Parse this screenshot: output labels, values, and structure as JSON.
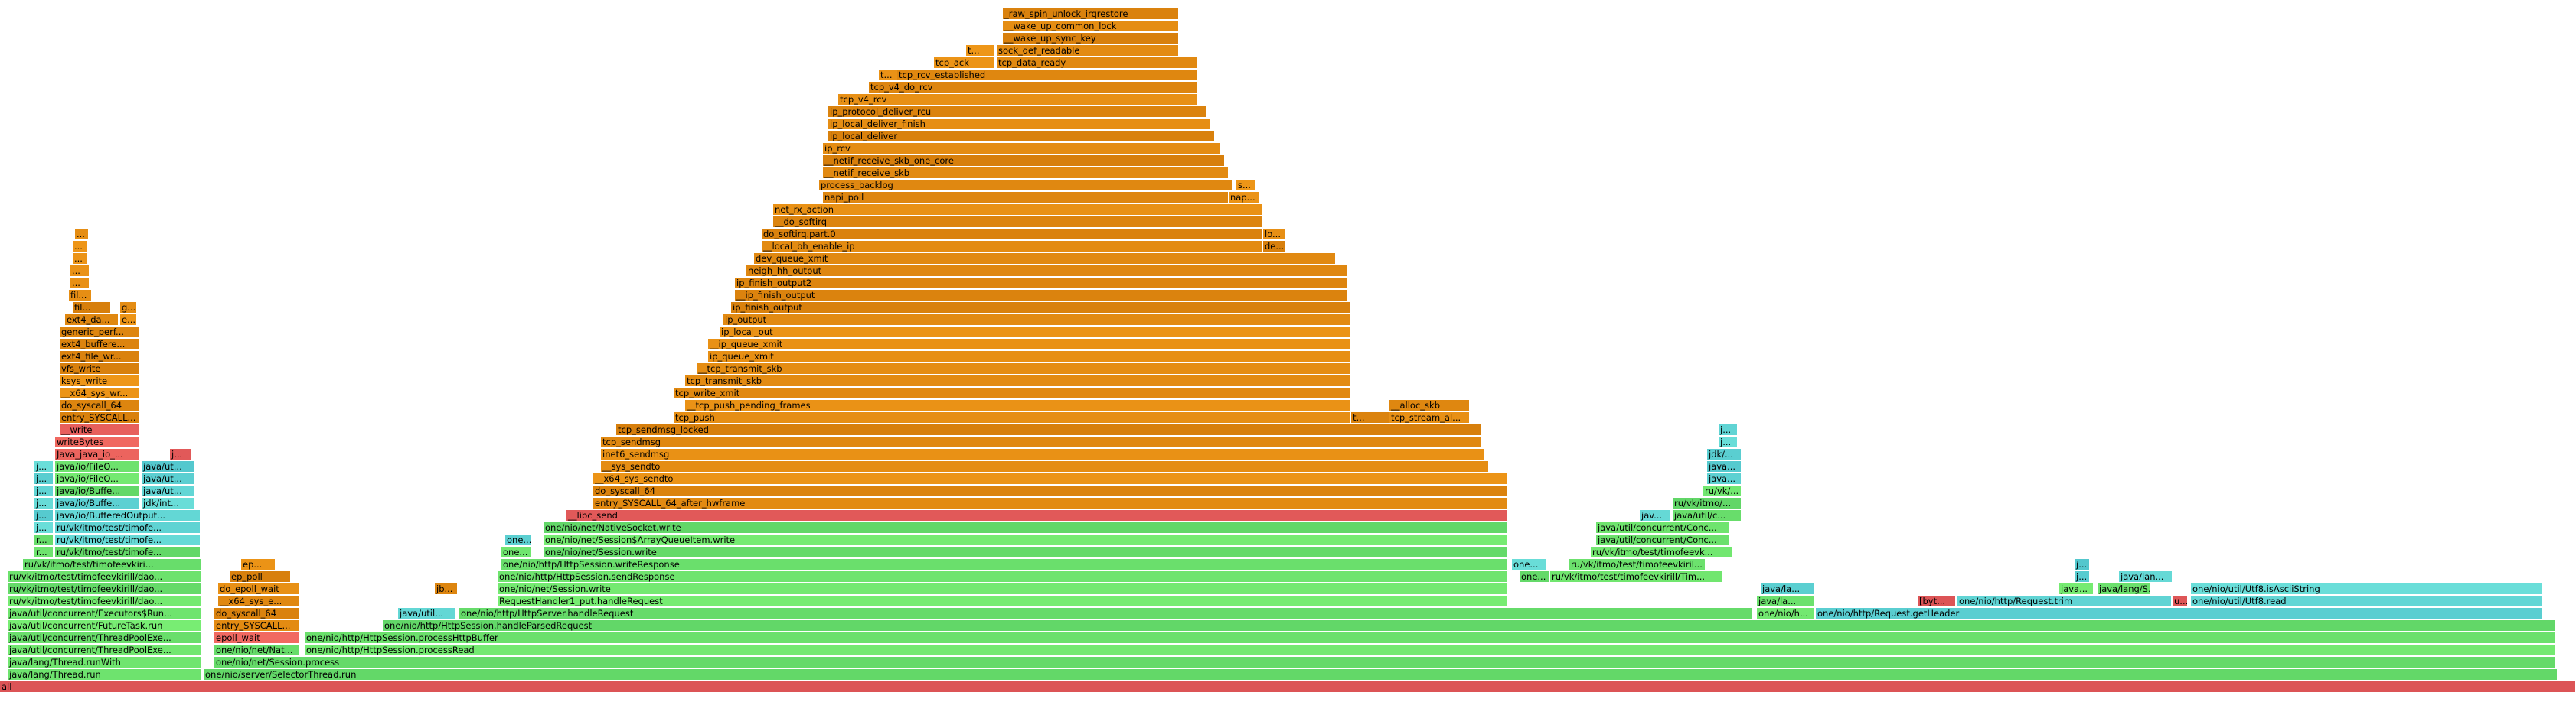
{
  "title": "",
  "colors": {
    "red": "#e8605c",
    "green": "#6de26d",
    "aqua": "#5fd3d3",
    "orange": "#e38b12",
    "yellow": "#cbbf3f"
  },
  "frames": [
    [
      "all",
      0,
      3365,
      0,
      "red"
    ],
    [
      "java/lang/Thread.run",
      10,
      253,
      1,
      "green"
    ],
    [
      "one/nio/server/SelectorThread.run",
      266,
      3075,
      1,
      "green"
    ],
    [
      "java/lang/Thread.runWith",
      10,
      253,
      2,
      "green"
    ],
    [
      "one/nio/net/Session.process",
      280,
      3058,
      2,
      "green"
    ],
    [
      "java/util/concurrent/ThreadPoolExe...",
      10,
      253,
      3,
      "green"
    ],
    [
      "one/nio/net/Nat...",
      280,
      112,
      3,
      "green"
    ],
    [
      "one/nio/http/HttpSession.processRead",
      398,
      2940,
      3,
      "green"
    ],
    [
      "java/util/concurrent/ThreadPoolExe...",
      10,
      253,
      4,
      "green"
    ],
    [
      "epoll_wait",
      280,
      112,
      4,
      "red"
    ],
    [
      "one/nio/http/HttpSession.processHttpBuffer",
      398,
      2940,
      4,
      "green"
    ],
    [
      "java/util/concurrent/FutureTask.run",
      10,
      253,
      5,
      "green"
    ],
    [
      "entry_SYSCALL...",
      280,
      112,
      5,
      "orange"
    ],
    [
      "one/nio/http/HttpSession.handleParsedRequest",
      500,
      2838,
      5,
      "green"
    ],
    [
      "java/util/concurrent/Executors$Run...",
      10,
      253,
      6,
      "green"
    ],
    [
      "do_syscall_64",
      280,
      112,
      6,
      "orange"
    ],
    [
      "java/util...",
      520,
      75,
      6,
      "aqua"
    ],
    [
      "one/nio/http/HttpServer.handleRequest",
      600,
      1690,
      6,
      "green"
    ],
    [
      "one/nio/h...",
      2295,
      75,
      6,
      "green"
    ],
    [
      "one/nio/http/Request.getHeader",
      2372,
      950,
      6,
      "aqua"
    ],
    [
      "ru/vk/itmo/test/timofeevkirill/dao...",
      10,
      253,
      7,
      "green"
    ],
    [
      "__x64_sys_e...",
      285,
      107,
      7,
      "orange"
    ],
    [
      "RequestHandler1_put.handleRequest",
      650,
      1320,
      7,
      "green"
    ],
    [
      "java/la...",
      2295,
      75,
      7,
      "green"
    ],
    [
      "[byt...",
      2505,
      50,
      7,
      "red"
    ],
    [
      "one/nio/http/Request.trim",
      2557,
      280,
      7,
      "aqua"
    ],
    [
      "u...",
      2838,
      20,
      7,
      "red"
    ],
    [
      "one/nio/util/Utf8.read",
      2862,
      460,
      7,
      "aqua"
    ],
    [
      "ru/vk/itmo/test/timofeevkirill/dao...",
      10,
      253,
      8,
      "green"
    ],
    [
      "do_epoll_wait",
      285,
      107,
      8,
      "orange"
    ],
    [
      "jb...",
      568,
      30,
      8,
      "orange"
    ],
    [
      "one/nio/net/Session.write",
      650,
      1320,
      8,
      "green"
    ],
    [
      "java/la...",
      2300,
      70,
      8,
      "aqua"
    ],
    [
      "java...",
      2690,
      45,
      8,
      "green"
    ],
    [
      "java/lang/S...",
      2740,
      70,
      8,
      "green"
    ],
    [
      "one/nio/util/Utf8.isAsciiString",
      2862,
      460,
      8,
      "aqua"
    ],
    [
      "ru/vk/itmo/test/timofeevkirill/dao...",
      10,
      253,
      9,
      "green"
    ],
    [
      "ep_poll",
      300,
      80,
      9,
      "orange"
    ],
    [
      "one/nio/http/HttpSession.sendResponse",
      650,
      1320,
      9,
      "green"
    ],
    [
      "one...",
      1985,
      40,
      9,
      "green"
    ],
    [
      "ru/vk/itmo/test/timofeevkirill/Tim...",
      2025,
      225,
      9,
      "green"
    ],
    [
      "j...",
      2710,
      20,
      9,
      "aqua"
    ],
    [
      "java/lan...",
      2768,
      70,
      9,
      "aqua"
    ],
    [
      "ru/vk/itmo/test/timofeevkiri...",
      30,
      233,
      10,
      "green"
    ],
    [
      "ep...",
      315,
      45,
      10,
      "orange"
    ],
    [
      "one/nio/http/HttpSession.writeResponse",
      655,
      1315,
      10,
      "green"
    ],
    [
      "one...",
      1975,
      45,
      10,
      "aqua"
    ],
    [
      "ru/vk/itmo/test/timofeevkiril...",
      2050,
      178,
      10,
      "green"
    ],
    [
      "j...",
      2710,
      20,
      10,
      "aqua"
    ],
    [
      "r...",
      45,
      25,
      11,
      "green"
    ],
    [
      "ru/vk/itmo/test/timofe...",
      72,
      190,
      11,
      "green"
    ],
    [
      "one...",
      655,
      40,
      11,
      "green"
    ],
    [
      "one/nio/net/Session.write",
      710,
      1260,
      11,
      "green"
    ],
    [
      "ru/vk/itmo/test/timofeevk...",
      2078,
      185,
      11,
      "green"
    ],
    [
      "r...",
      45,
      25,
      12,
      "green"
    ],
    [
      "ru/vk/itmo/test/timofe...",
      72,
      190,
      12,
      "aqua"
    ],
    [
      "one...",
      660,
      35,
      12,
      "aqua"
    ],
    [
      "one/nio/net/Session$ArrayQueueItem.write",
      710,
      1260,
      12,
      "green"
    ],
    [
      "java/util/concurrent/Conc...",
      2085,
      175,
      12,
      "green"
    ],
    [
      "j...",
      45,
      25,
      13,
      "aqua"
    ],
    [
      "ru/vk/itmo/test/timofe...",
      72,
      190,
      13,
      "aqua"
    ],
    [
      "one/nio/net/NativeSocket.write",
      710,
      1260,
      13,
      "green"
    ],
    [
      "java/util/concurrent/Conc...",
      2085,
      175,
      13,
      "green"
    ],
    [
      "j...",
      45,
      25,
      14,
      "aqua"
    ],
    [
      "java/io/BufferedOutput...",
      72,
      190,
      14,
      "aqua"
    ],
    [
      "__libc_send",
      740,
      1230,
      14,
      "red"
    ],
    [
      "jav...",
      2142,
      40,
      14,
      "aqua"
    ],
    [
      "java/util/c...",
      2185,
      90,
      14,
      "green"
    ],
    [
      "j...",
      45,
      25,
      15,
      "aqua"
    ],
    [
      "java/io/Buffe...",
      72,
      110,
      15,
      "aqua"
    ],
    [
      "jdk/int...",
      185,
      70,
      15,
      "aqua"
    ],
    [
      "entry_SYSCALL_64_after_hwframe",
      775,
      1195,
      15,
      "orange"
    ],
    [
      "ru/vk/itmo/...",
      2185,
      90,
      15,
      "green"
    ],
    [
      "j...",
      45,
      25,
      16,
      "aqua"
    ],
    [
      "java/io/Buffe...",
      72,
      110,
      16,
      "green"
    ],
    [
      "java/ut...",
      185,
      70,
      16,
      "aqua"
    ],
    [
      "do_syscall_64",
      775,
      1195,
      16,
      "orange"
    ],
    [
      "ru/vk/...",
      2225,
      50,
      16,
      "green"
    ],
    [
      "j...",
      45,
      25,
      17,
      "aqua"
    ],
    [
      "java/io/FileO...",
      72,
      110,
      17,
      "green"
    ],
    [
      "java/ut...",
      185,
      70,
      17,
      "aqua"
    ],
    [
      "__x64_sys_sendto",
      775,
      1195,
      17,
      "orange"
    ],
    [
      "java...",
      2230,
      45,
      17,
      "aqua"
    ],
    [
      "j...",
      45,
      25,
      18,
      "aqua"
    ],
    [
      "java/io/FileO...",
      72,
      110,
      18,
      "green"
    ],
    [
      "java/ut...",
      185,
      70,
      18,
      "aqua"
    ],
    [
      "__sys_sendto",
      785,
      1160,
      18,
      "orange"
    ],
    [
      "java...",
      2230,
      45,
      18,
      "aqua"
    ],
    [
      "Java_java_io_...",
      72,
      110,
      19,
      "red"
    ],
    [
      "j...",
      222,
      28,
      19,
      "red"
    ],
    [
      "inet6_sendmsg",
      785,
      1155,
      19,
      "orange"
    ],
    [
      "jdk/...",
      2230,
      45,
      19,
      "aqua"
    ],
    [
      "writeBytes",
      72,
      110,
      20,
      "red"
    ],
    [
      "tcp_sendmsg",
      785,
      1150,
      20,
      "orange"
    ],
    [
      "j...",
      2245,
      25,
      20,
      "aqua"
    ],
    [
      "__write",
      78,
      104,
      21,
      "red"
    ],
    [
      "tcp_sendmsg_locked",
      805,
      1130,
      21,
      "orange"
    ],
    [
      "j...",
      2245,
      25,
      21,
      "aqua"
    ],
    [
      "entry_SYSCALL...",
      78,
      104,
      22,
      "orange"
    ],
    [
      "tcp_push",
      880,
      885,
      22,
      "orange"
    ],
    [
      "t...",
      1765,
      50,
      22,
      "orange"
    ],
    [
      "tcp_stream_al...",
      1815,
      105,
      22,
      "orange"
    ],
    [
      "do_syscall_64",
      78,
      104,
      23,
      "orange"
    ],
    [
      "__tcp_push_pending_frames",
      895,
      870,
      23,
      "orange"
    ],
    [
      "__alloc_skb",
      1815,
      105,
      23,
      "orange"
    ],
    [
      "__x64_sys_wr...",
      78,
      104,
      24,
      "orange"
    ],
    [
      "tcp_write_xmit",
      880,
      885,
      24,
      "orange"
    ],
    [
      "ksys_write",
      78,
      104,
      25,
      "orange"
    ],
    [
      "tcp_transmit_skb",
      895,
      870,
      25,
      "orange"
    ],
    [
      "vfs_write",
      78,
      104,
      26,
      "orange"
    ],
    [
      "__tcp_transmit_skb",
      910,
      855,
      26,
      "orange"
    ],
    [
      "ext4_file_wr...",
      78,
      104,
      27,
      "orange"
    ],
    [
      "ip_queue_xmit",
      925,
      840,
      27,
      "orange"
    ],
    [
      "ext4_buffere...",
      78,
      104,
      28,
      "orange"
    ],
    [
      "__ip_queue_xmit",
      925,
      840,
      28,
      "orange"
    ],
    [
      "generic_perf...",
      78,
      104,
      29,
      "orange"
    ],
    [
      "ip_local_out",
      940,
      825,
      29,
      "orange"
    ],
    [
      "ext4_da...",
      85,
      70,
      30,
      "orange"
    ],
    [
      "e...",
      157,
      22,
      30,
      "orange"
    ],
    [
      "ip_output",
      945,
      820,
      30,
      "orange"
    ],
    [
      "fil...",
      95,
      50,
      31,
      "orange"
    ],
    [
      "g...",
      157,
      22,
      31,
      "orange"
    ],
    [
      "ip_finish_output",
      955,
      810,
      31,
      "orange"
    ],
    [
      "fil...",
      90,
      30,
      32,
      "orange"
    ],
    [
      "__ip_finish_output",
      960,
      800,
      32,
      "orange"
    ],
    [
      "...",
      92,
      25,
      33,
      "orange"
    ],
    [
      "ip_finish_output2",
      960,
      800,
      33,
      "orange"
    ],
    [
      "...",
      92,
      25,
      34,
      "orange"
    ],
    [
      "neigh_hh_output",
      975,
      785,
      34,
      "orange"
    ],
    [
      "...",
      95,
      20,
      35,
      "orange"
    ],
    [
      "dev_queue_xmit",
      985,
      760,
      35,
      "orange"
    ],
    [
      "...",
      95,
      20,
      36,
      "orange"
    ],
    [
      "__local_bh_enable_ip",
      995,
      655,
      36,
      "orange"
    ],
    [
      "de...",
      1650,
      30,
      36,
      "orange"
    ],
    [
      "...",
      98,
      18,
      37,
      "orange"
    ],
    [
      "do_softirq.part.0",
      995,
      655,
      37,
      "orange"
    ],
    [
      "lo...",
      1650,
      30,
      37,
      "orange"
    ],
    [
      "__do_softirq",
      1010,
      640,
      38,
      "orange"
    ],
    [
      "net_rx_action",
      1010,
      640,
      39,
      "orange"
    ],
    [
      "napi_poll",
      1075,
      530,
      40,
      "orange"
    ],
    [
      "nap...",
      1605,
      40,
      40,
      "orange"
    ],
    [
      "process_backlog",
      1070,
      540,
      41,
      "orange"
    ],
    [
      "s...",
      1615,
      25,
      41,
      "orange"
    ],
    [
      "__netif_receive_skb",
      1075,
      530,
      42,
      "orange"
    ],
    [
      "__netif_receive_skb_one_core",
      1075,
      525,
      43,
      "orange"
    ],
    [
      "ip_rcv",
      1075,
      520,
      44,
      "orange"
    ],
    [
      "ip_local_deliver",
      1082,
      505,
      45,
      "orange"
    ],
    [
      "ip_local_deliver_finish",
      1082,
      500,
      46,
      "orange"
    ],
    [
      "ip_protocol_deliver_rcu",
      1082,
      495,
      47,
      "orange"
    ],
    [
      "tcp_v4_rcv",
      1095,
      470,
      48,
      "orange"
    ],
    [
      "tcp_v4_do_rcv",
      1135,
      430,
      49,
      "orange"
    ],
    [
      "t...",
      1148,
      25,
      50,
      "orange"
    ],
    [
      "tcp_rcv_established",
      1172,
      393,
      50,
      "orange"
    ],
    [
      "tcp_ack",
      1220,
      80,
      51,
      "orange"
    ],
    [
      "tcp_data_ready",
      1302,
      263,
      51,
      "orange"
    ],
    [
      "t...",
      1262,
      38,
      52,
      "orange"
    ],
    [
      "sock_def_readable",
      1302,
      238,
      52,
      "orange"
    ],
    [
      "__wake_up_sync_key",
      1310,
      230,
      53,
      "orange"
    ],
    [
      "__wake_up_common_lock",
      1310,
      230,
      54,
      "orange"
    ],
    [
      "_raw_spin_unlock_irqrestore",
      1310,
      230,
      55,
      "orange"
    ]
  ]
}
